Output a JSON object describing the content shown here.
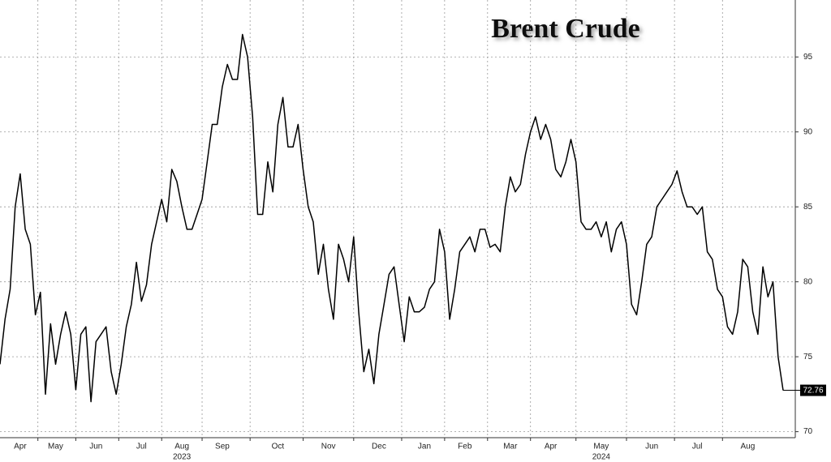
{
  "chart_data": {
    "type": "line",
    "title": "Brent Crude",
    "categories": [
      null,
      null,
      null,
      null,
      "Apr",
      null,
      null,
      null,
      null,
      null,
      null,
      "May",
      null,
      null,
      null,
      null,
      null,
      null,
      null,
      "Jun",
      null,
      null,
      null,
      null,
      null,
      null,
      null,
      null,
      "Jul",
      null,
      null,
      null,
      null,
      null,
      null,
      null,
      "Aug",
      null,
      null,
      null,
      null,
      null,
      null,
      null,
      "Sep",
      null,
      null,
      null,
      null,
      null,
      null,
      null,
      null,
      null,
      null,
      "Oct",
      null,
      null,
      null,
      null,
      null,
      null,
      null,
      null,
      null,
      "Nov",
      null,
      null,
      null,
      null,
      null,
      null,
      null,
      null,
      null,
      "Dec",
      null,
      null,
      null,
      null,
      null,
      null,
      null,
      null,
      "Jan",
      null,
      null,
      null,
      null,
      null,
      null,
      null,
      "Feb",
      null,
      null,
      null,
      null,
      null,
      null,
      null,
      null,
      "Mar",
      null,
      null,
      null,
      null,
      null,
      null,
      null,
      "Apr",
      null,
      null,
      null,
      null,
      null,
      null,
      null,
      null,
      null,
      "May",
      null,
      null,
      null,
      null,
      null,
      null,
      null,
      null,
      null,
      "Jun",
      null,
      null,
      null,
      null,
      null,
      null,
      null,
      null,
      "Jul",
      null,
      null,
      null,
      null,
      null,
      null,
      null,
      null,
      null,
      "Aug",
      null,
      null,
      null,
      null,
      null,
      null,
      null
    ],
    "years": [
      null,
      null,
      null,
      null,
      null,
      null,
      null,
      null,
      null,
      null,
      null,
      null,
      null,
      null,
      null,
      null,
      null,
      null,
      null,
      null,
      null,
      null,
      null,
      null,
      null,
      null,
      null,
      null,
      null,
      null,
      null,
      null,
      null,
      null,
      null,
      null,
      "2023",
      null,
      null,
      null,
      null,
      null,
      null,
      null,
      null,
      null,
      null,
      null,
      null,
      null,
      null,
      null,
      null,
      null,
      null,
      null,
      null,
      null,
      null,
      null,
      null,
      null,
      null,
      null,
      null,
      null,
      null,
      null,
      null,
      null,
      null,
      null,
      null,
      null,
      null,
      null,
      null,
      null,
      null,
      null,
      null,
      null,
      null,
      null,
      null,
      null,
      null,
      null,
      null,
      null,
      null,
      null,
      null,
      null,
      null,
      null,
      null,
      null,
      null,
      null,
      null,
      null,
      null,
      null,
      null,
      null,
      null,
      null,
      null,
      null,
      null,
      null,
      null,
      null,
      null,
      null,
      null,
      null,
      null,
      "2024",
      null,
      null,
      null,
      null,
      null,
      null,
      null,
      null,
      null,
      null,
      null,
      null,
      null,
      null,
      null,
      null,
      null,
      null,
      null,
      null,
      null,
      null,
      null,
      null,
      null,
      null,
      null,
      null,
      null,
      null,
      null,
      null,
      null,
      null,
      null,
      null
    ],
    "values": [
      74.5,
      77.5,
      79.5,
      85.0,
      87.2,
      83.5,
      82.5,
      77.8,
      79.3,
      72.5,
      77.2,
      74.5,
      76.5,
      78.0,
      76.5,
      72.8,
      76.5,
      77.0,
      72.0,
      76.0,
      76.5,
      77.0,
      74.0,
      72.5,
      74.5,
      77.0,
      78.5,
      81.3,
      78.7,
      79.8,
      82.5,
      84.0,
      85.5,
      84.0,
      87.5,
      86.7,
      85.0,
      83.5,
      83.5,
      84.5,
      85.5,
      88.0,
      90.5,
      90.5,
      93.0,
      94.5,
      93.5,
      93.5,
      96.5,
      95.0,
      91.0,
      84.5,
      84.5,
      88.0,
      86.0,
      90.5,
      92.3,
      89.0,
      89.0,
      90.5,
      87.5,
      85.0,
      84.0,
      80.5,
      82.5,
      79.5,
      77.5,
      82.5,
      81.5,
      80.0,
      83.0,
      78.0,
      74.0,
      75.5,
      73.2,
      76.5,
      78.5,
      80.5,
      81.0,
      78.5,
      76.0,
      79.0,
      78.0,
      78.0,
      78.3,
      79.5,
      80.0,
      83.5,
      82.0,
      77.5,
      79.5,
      82.0,
      82.5,
      83.0,
      82.0,
      83.5,
      83.5,
      82.3,
      82.5,
      82.0,
      85.0,
      87.0,
      86.0,
      86.5,
      88.5,
      90.0,
      91.0,
      89.5,
      90.5,
      89.5,
      87.5,
      87.0,
      88.0,
      89.5,
      88.0,
      84.0,
      83.5,
      83.5,
      84.0,
      83.0,
      84.0,
      82.0,
      83.5,
      84.0,
      82.5,
      78.5,
      77.8,
      80.0,
      82.5,
      83.0,
      85.0,
      85.5,
      86.0,
      86.5,
      87.4,
      86.0,
      85.0,
      85.0,
      84.5,
      85.0,
      82.0,
      81.5,
      79.5,
      79.0,
      77.0,
      76.5,
      78.0,
      81.5,
      81.0,
      78.0,
      76.5,
      81.0,
      79.0,
      80.0,
      75.0,
      72.76
    ],
    "color": "#000000",
    "ylim": [
      69.6,
      98.8
    ],
    "yticks": [
      70,
      75,
      80,
      85,
      90,
      95
    ],
    "grid": true
  }
}
